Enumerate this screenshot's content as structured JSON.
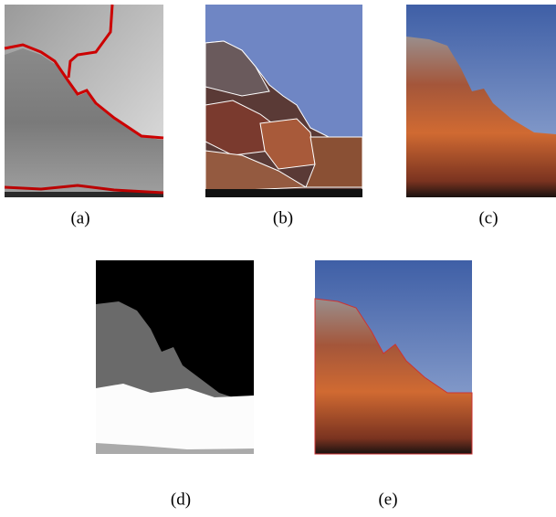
{
  "captions": {
    "a": "(a)",
    "b": "(b)",
    "c": "(c)",
    "d": "(d)",
    "e": "(e)"
  }
}
